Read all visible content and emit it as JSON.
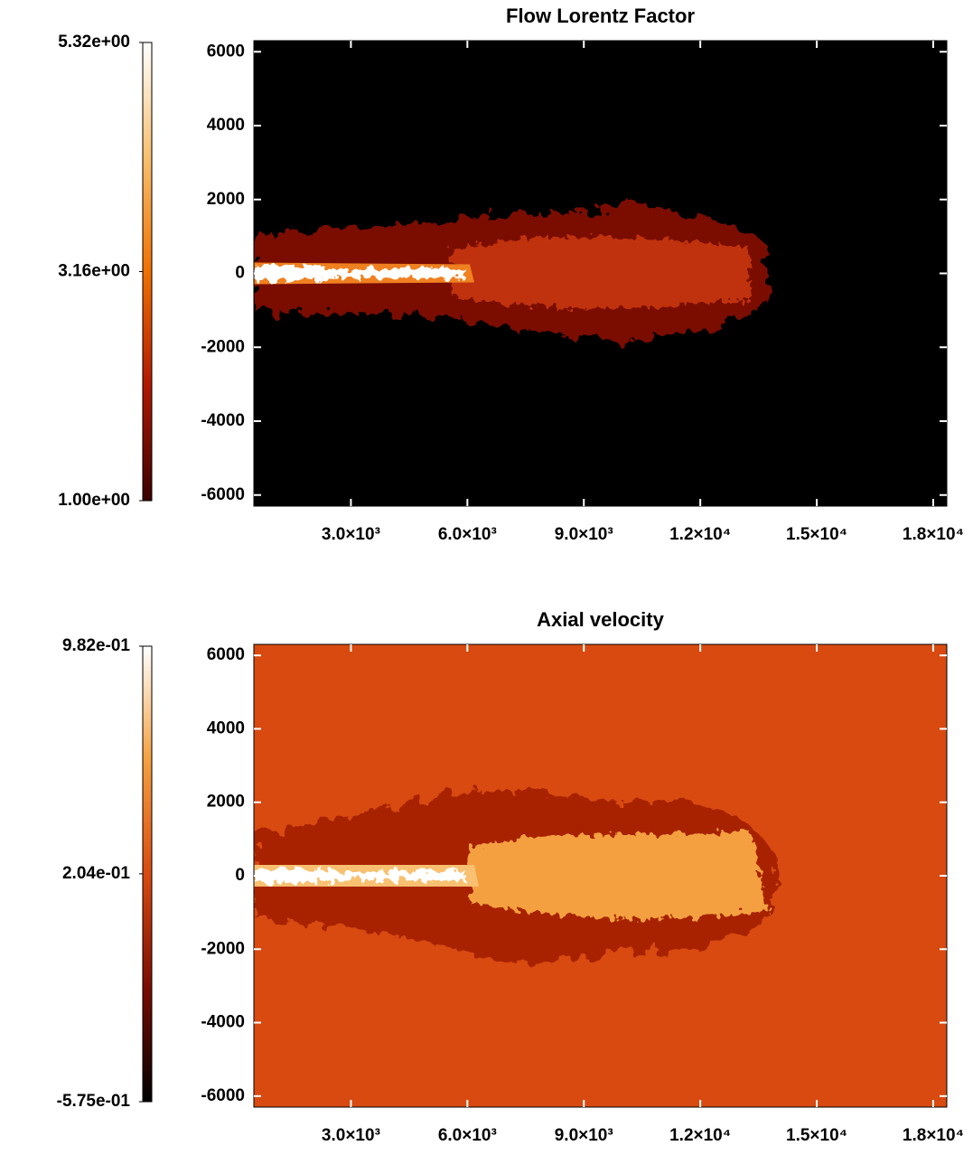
{
  "chart_data": [
    {
      "type": "heatmap",
      "title": "Flow Lorentz Factor",
      "xlim": [
        500,
        18350
      ],
      "ylim": [
        -6300,
        6300
      ],
      "xticks": [
        {
          "value": 3000,
          "label": "3.0×10³"
        },
        {
          "value": 6000,
          "label": "6.0×10³"
        },
        {
          "value": 9000,
          "label": "9.0×10³"
        },
        {
          "value": 12000,
          "label": "1.2×10⁴"
        },
        {
          "value": 15000,
          "label": "1.5×10⁴"
        },
        {
          "value": 18000,
          "label": "1.8×10⁴"
        }
      ],
      "yticks": [
        6000,
        4000,
        2000,
        0,
        -2000,
        -4000,
        -6000
      ],
      "background": "#000000",
      "colorbar": {
        "lim": [
          1.0,
          5.32
        ],
        "ticks": [
          {
            "value": 5.32,
            "label": "5.32e+00"
          },
          {
            "value": 3.16,
            "label": "3.16e+00"
          },
          {
            "value": 1.0,
            "label": "1.00e+00"
          }
        ],
        "colors": [
          "#3a0000",
          "#b01800",
          "#f07000",
          "#f8c070",
          "#ffffff"
        ]
      }
    },
    {
      "type": "heatmap",
      "title": "Axial velocity",
      "xlim": [
        500,
        18350
      ],
      "ylim": [
        -6300,
        6300
      ],
      "xticks": [
        {
          "value": 3000,
          "label": "3.0×10³"
        },
        {
          "value": 6000,
          "label": "6.0×10³"
        },
        {
          "value": 9000,
          "label": "9.0×10³"
        },
        {
          "value": 12000,
          "label": "1.2×10⁴"
        },
        {
          "value": 15000,
          "label": "1.5×10⁴"
        },
        {
          "value": 18000,
          "label": "1.8×10⁴"
        }
      ],
      "yticks": [
        6000,
        4000,
        2000,
        0,
        -2000,
        -4000,
        -6000
      ],
      "background": "#d84a10",
      "colorbar": {
        "lim": [
          -0.575,
          0.982
        ],
        "ticks": [
          {
            "value": 0.982,
            "label": "9.82e-01"
          },
          {
            "value": 0.204,
            "label": "2.04e-01"
          },
          {
            "value": -0.575,
            "label": "-5.75e-01"
          }
        ],
        "colors": [
          "#000000",
          "#7a0c00",
          "#d84a10",
          "#f4a040",
          "#ffffff"
        ]
      }
    }
  ]
}
